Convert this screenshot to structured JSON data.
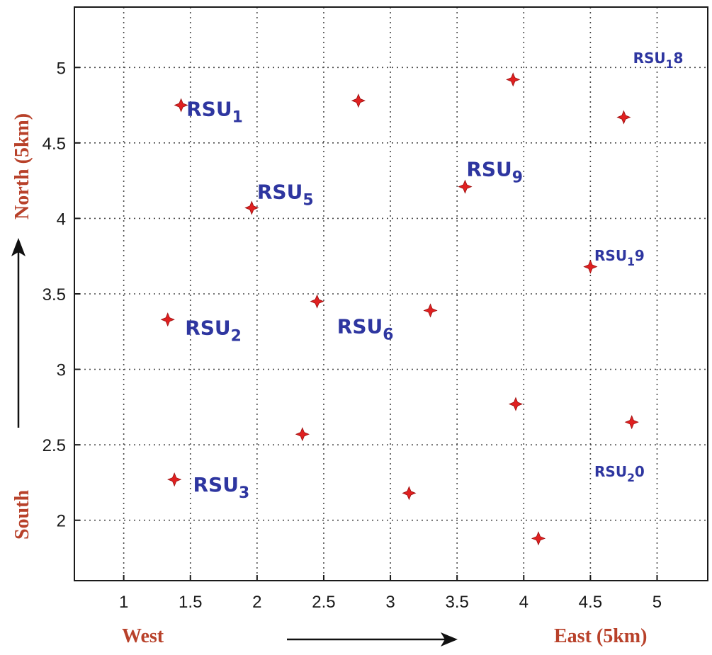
{
  "chart_data": {
    "type": "scatter",
    "title": "",
    "xlabel": {
      "left": "West",
      "right": "East (5km)"
    },
    "ylabel": {
      "top": "North (5km)",
      "bottom": "South"
    },
    "xlim": [
      0.63,
      5.38
    ],
    "ylim": [
      1.6,
      5.4
    ],
    "grid": true,
    "x_ticks": [
      1,
      1.5,
      2,
      2.5,
      3,
      3.5,
      4,
      4.5,
      5
    ],
    "x_tick_labels": [
      "1",
      "1.5",
      "2",
      "2.5",
      "3",
      "3.5",
      "4",
      "4.5",
      "5"
    ],
    "y_ticks": [
      2,
      2.5,
      3,
      3.5,
      4,
      4.5,
      5
    ],
    "y_tick_labels": [
      "2",
      "2.5",
      "3",
      "3.5",
      "4",
      "4.5",
      "5"
    ],
    "marker_color": "#e02020",
    "points": [
      {
        "x": 1.43,
        "y": 4.75
      },
      {
        "x": 2.76,
        "y": 4.78
      },
      {
        "x": 3.92,
        "y": 4.92
      },
      {
        "x": 4.75,
        "y": 4.67
      },
      {
        "x": 1.96,
        "y": 4.07
      },
      {
        "x": 3.56,
        "y": 4.21
      },
      {
        "x": 4.5,
        "y": 3.68
      },
      {
        "x": 1.33,
        "y": 3.33
      },
      {
        "x": 2.45,
        "y": 3.45
      },
      {
        "x": 3.3,
        "y": 3.39
      },
      {
        "x": 3.94,
        "y": 2.77
      },
      {
        "x": 4.81,
        "y": 2.65
      },
      {
        "x": 2.34,
        "y": 2.57
      },
      {
        "x": 1.38,
        "y": 2.27
      },
      {
        "x": 3.14,
        "y": 2.18
      },
      {
        "x": 4.11,
        "y": 1.88
      }
    ],
    "annotations": [
      {
        "text": "RSU",
        "sub": "1",
        "x": 1.47,
        "y": 4.68,
        "size": "large"
      },
      {
        "text": "RSU",
        "sub": "5",
        "x": 2.0,
        "y": 4.13,
        "size": "large"
      },
      {
        "text": "RSU",
        "sub": "9",
        "x": 3.57,
        "y": 4.28,
        "size": "large"
      },
      {
        "text": "RSU",
        "sub": "2",
        "x": 1.46,
        "y": 3.23,
        "size": "large"
      },
      {
        "text": "RSU",
        "sub": "6",
        "x": 2.6,
        "y": 3.24,
        "size": "large"
      },
      {
        "text": "RSU",
        "sub": "3",
        "x": 1.52,
        "y": 2.19,
        "size": "large"
      },
      {
        "text": "RSU",
        "sub": "1",
        "suffix": "8",
        "x": 4.82,
        "y": 5.03,
        "size": "small"
      },
      {
        "text": "RSU",
        "sub": "1",
        "suffix": "9",
        "x": 4.53,
        "y": 3.72,
        "size": "small"
      },
      {
        "text": "RSU",
        "sub": "2",
        "suffix": "0",
        "x": 4.53,
        "y": 2.29,
        "size": "small"
      }
    ]
  }
}
